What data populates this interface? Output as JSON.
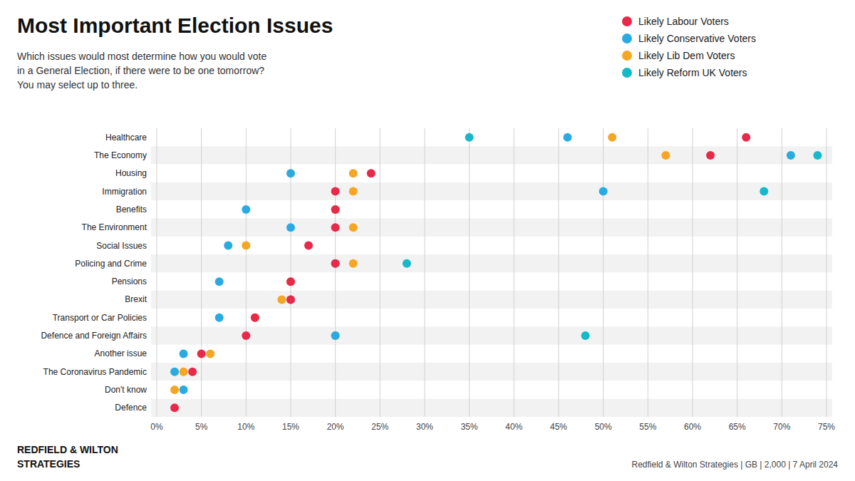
{
  "chart_data": {
    "type": "dot",
    "orientation": "horizontal",
    "title": "Most Important Election Issues",
    "subtitle": "Which issues would most determine how you would vote\nin a General Election, if there were to be one tomorrow?\nYou may select up to three.",
    "annotations": [
      "REDFIELD & WILTON",
      "STRATEGIES",
      "Redfield & Wilton Strategies | GB | 2,000 | 7 April 2024"
    ],
    "categories": [
      "Healthcare",
      "The Economy",
      "Housing",
      "Immigration",
      "Benefits",
      "The Environment",
      "Social Issues",
      "Policing and Crime",
      "Pensions",
      "Brexit",
      "Transport or Car Policies",
      "Defence and Foreign Affairs",
      "Another issue",
      "The Coronavirus Pandemic",
      "Don't know",
      "Defence"
    ],
    "series": [
      {
        "name": "Likely Labour Voters",
        "color": "#E8294A",
        "values": [
          66,
          62,
          24,
          20,
          20,
          20,
          17,
          20,
          15,
          15,
          11,
          10,
          5,
          4,
          null,
          2
        ]
      },
      {
        "name": "Likely Conservative Voters",
        "color": "#29ABE2",
        "values": [
          46,
          71,
          15,
          50,
          10,
          15,
          8,
          20,
          7,
          15,
          7,
          20,
          3,
          2,
          3,
          null
        ]
      },
      {
        "name": "Likely Lib Dem Voters",
        "color": "#F5A623",
        "values": [
          51,
          57,
          22,
          22,
          20,
          22,
          10,
          22,
          15,
          14,
          11,
          20,
          6,
          3,
          2,
          null
        ]
      },
      {
        "name": "Likely Reform UK Voters",
        "color": "#17B8C8",
        "values": [
          35,
          74,
          null,
          68,
          null,
          null,
          null,
          28,
          null,
          null,
          null,
          48,
          null,
          null,
          null,
          null
        ]
      }
    ],
    "xlim": [
      0,
      75
    ],
    "xticks": [
      {
        "value": 0,
        "label": "0%"
      },
      {
        "value": 5,
        "label": "5%"
      },
      {
        "value": 10,
        "label": "10%"
      },
      {
        "value": 15,
        "label": "15%"
      },
      {
        "value": 20,
        "label": "20%"
      },
      {
        "value": 25,
        "label": "25%"
      },
      {
        "value": 30,
        "label": "30%"
      },
      {
        "value": 35,
        "label": "35%"
      },
      {
        "value": 40,
        "label": "40%"
      },
      {
        "value": 45,
        "label": "45%"
      },
      {
        "value": 50,
        "label": "50%"
      },
      {
        "value": 55,
        "label": "55%"
      },
      {
        "value": 60,
        "label": "60%"
      },
      {
        "value": 65,
        "label": "65%"
      },
      {
        "value": 70,
        "label": "70%"
      },
      {
        "value": 75,
        "label": "75%"
      }
    ],
    "grid": true,
    "legend": "top-right"
  }
}
